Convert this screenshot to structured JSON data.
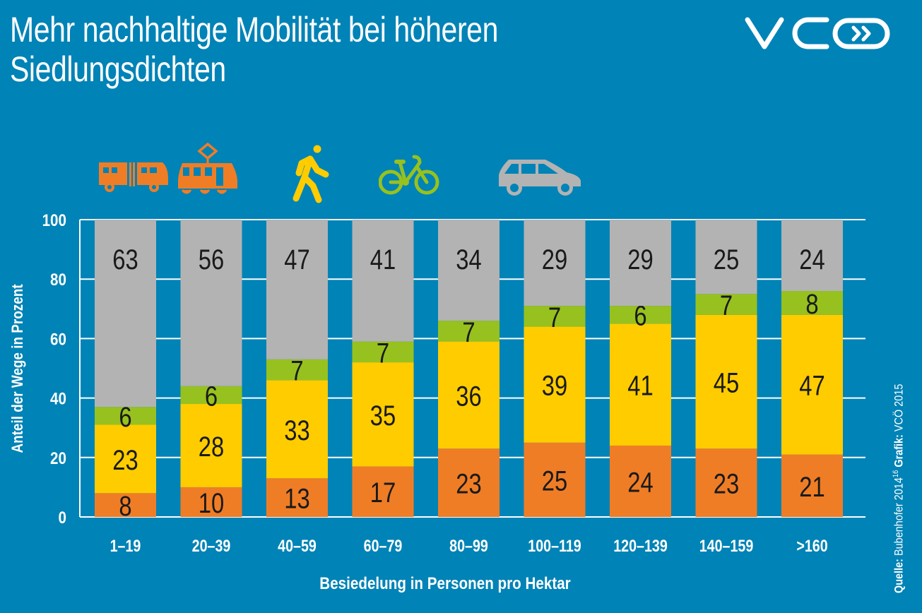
{
  "header": {
    "title_line1": "Mehr nachhaltige Mobilität bei höheren",
    "title_line2": "Siedlungsdichten",
    "logo_text": "VCÖ"
  },
  "legend_icons": [
    {
      "name": "bus-icon",
      "mode": "Öffentlicher Verkehr (Bus)",
      "color": "#ef7d26"
    },
    {
      "name": "tram-icon",
      "mode": "Öffentlicher Verkehr (Straßenbahn)",
      "color": "#ef7d26"
    },
    {
      "name": "pedestrian-icon",
      "mode": "Zu Fuß",
      "color": "#ffcc00"
    },
    {
      "name": "bicycle-icon",
      "mode": "Fahrrad",
      "color": "#97c11f"
    },
    {
      "name": "car-icon",
      "mode": "Auto",
      "color": "#b3b3b3"
    }
  ],
  "source": {
    "label": "Quelle:",
    "text": "Bubenhofer 2014",
    "superscript": "16",
    "grafik_label": "Grafik:",
    "grafik_text": "VCÖ 2015"
  },
  "colors": {
    "background": "#0083b6",
    "public_transport": "#ef7d26",
    "walking": "#ffcc00",
    "cycling": "#97c11f",
    "car": "#b3b3b3",
    "grid": "#ffffff",
    "label_text": "#1a1a1a"
  },
  "chart_data": {
    "type": "bar",
    "stacked": true,
    "title": "Mehr nachhaltige Mobilität bei höheren Siedlungsdichten",
    "xlabel": "Besiedelung in Personen pro Hektar",
    "ylabel": "Anteil der Wege in Prozent",
    "ylim": [
      0,
      100
    ],
    "yticks": [
      0,
      20,
      40,
      60,
      80,
      100
    ],
    "grid": true,
    "categories": [
      "1–19",
      "20–39",
      "40–59",
      "60–79",
      "80–99",
      "100–119",
      "120–139",
      "140–159",
      ">160"
    ],
    "series": [
      {
        "name": "Öffentlicher Verkehr",
        "color": "#ef7d26",
        "values": [
          8,
          10,
          13,
          17,
          23,
          25,
          24,
          23,
          21
        ]
      },
      {
        "name": "Zu Fuß",
        "color": "#ffcc00",
        "values": [
          23,
          28,
          33,
          35,
          36,
          39,
          41,
          45,
          47
        ]
      },
      {
        "name": "Fahrrad",
        "color": "#97c11f",
        "values": [
          6,
          6,
          7,
          7,
          7,
          7,
          6,
          7,
          8
        ]
      },
      {
        "name": "Auto",
        "color": "#b3b3b3",
        "values": [
          63,
          56,
          47,
          41,
          34,
          29,
          29,
          25,
          24
        ]
      }
    ]
  }
}
